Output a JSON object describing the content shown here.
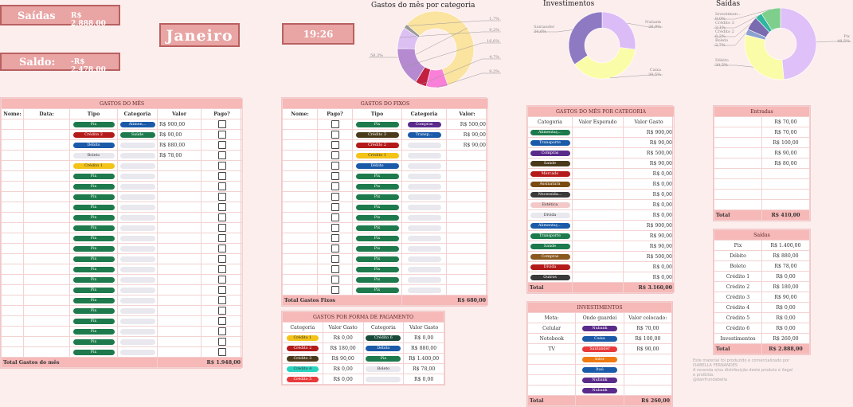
{
  "cards": {
    "saidas_label": "Saídas",
    "saidas_value": "R$ 2.888,00",
    "saldo_label": "Saldo:",
    "saldo_value": "-R$ 2.478,00",
    "month": "Janeiro",
    "time": "19:26"
  },
  "charts": {
    "categoria_title": "Gastos do mês por categoria",
    "investimentos_title": "Investimentos",
    "saidas_title": "Saídas"
  },
  "chart_data": [
    {
      "type": "pie",
      "title": "Gastos do mês por categoria",
      "labels": [
        "",
        "",
        "",
        "",
        "",
        ""
      ],
      "values": [
        58.3,
        9.2,
        4.7,
        16.6,
        9.2,
        1.7
      ],
      "value_labels": [
        "58,3%",
        "9,2%",
        "4,7%",
        "16,6%",
        "9,2%",
        "1,7%"
      ],
      "colors": [
        "#fbe3a0",
        "#f97fd8",
        "#c22040",
        "#b58ad0",
        "#dcc0f3",
        "#999999"
      ]
    },
    {
      "type": "pie",
      "title": "Investimentos",
      "labels": [
        "Nubank",
        "Caixa",
        "Santander"
      ],
      "values": [
        26.9,
        38.5,
        34.6
      ],
      "value_labels": [
        "26,9%",
        "38,5%",
        "34,6%"
      ],
      "colors": [
        "#dcbcf7",
        "#fbfca8",
        "#8e79c3"
      ]
    },
    {
      "type": "pie",
      "title": "Saídas",
      "labels": [
        "Pix",
        "Débito",
        "Boleto",
        "Crédito 2",
        "Crédito 3",
        "Investimen..."
      ],
      "values": [
        48.5,
        30.5,
        2.7,
        6.2,
        3.1,
        9.0
      ],
      "value_labels": [
        "48,5%",
        "30,5%",
        "2,7%",
        "6,2%",
        "3,1%",
        "9,0%"
      ],
      "colors": [
        "#e0c0f8",
        "#fbfca8",
        "#8aa0d0",
        "#7a6ab0",
        "#2fb5a0",
        "#7fcf8c"
      ]
    }
  ],
  "gastos_mes": {
    "title": "GASTOS DO MÊS",
    "headers": [
      "Nome:",
      "Data:",
      "Tipo",
      "Categoria",
      "Valor",
      "Pago?"
    ],
    "rows": [
      {
        "tipo": "Pix",
        "tcolor": "#1e7a4c",
        "cat": "Alimen...",
        "ccolor": "#1a5aa8",
        "valor": "R$ 900,00"
      },
      {
        "tipo": "Crédito 2",
        "tcolor": "#b51a1a",
        "cat": "Saúde",
        "ccolor": "#1e7a4c",
        "valor": "R$ 90,00"
      },
      {
        "tipo": "Débito",
        "tcolor": "#1a5aa8",
        "cat": "",
        "ccolor": "",
        "valor": "R$ 880,00"
      },
      {
        "tipo": "Boleto",
        "tcolor": "#e8e8ee",
        "cat": "",
        "ccolor": "",
        "valor": "R$ 78,00"
      },
      {
        "tipo": "Crédito 1",
        "tcolor": "#f3c318",
        "cat": "",
        "ccolor": "",
        "valor": ""
      },
      {
        "tipo": "Pix",
        "tcolor": "#1e7a4c",
        "cat": "",
        "ccolor": "",
        "valor": ""
      },
      {
        "tipo": "Pix",
        "tcolor": "#1e7a4c",
        "cat": "",
        "ccolor": "",
        "valor": ""
      },
      {
        "tipo": "Pix",
        "tcolor": "#1e7a4c",
        "cat": "",
        "ccolor": "",
        "valor": ""
      },
      {
        "tipo": "Pix",
        "tcolor": "#1e7a4c",
        "cat": "",
        "ccolor": "",
        "valor": ""
      },
      {
        "tipo": "Pix",
        "tcolor": "#1e7a4c",
        "cat": "",
        "ccolor": "",
        "valor": ""
      },
      {
        "tipo": "Pix",
        "tcolor": "#1e7a4c",
        "cat": "",
        "ccolor": "",
        "valor": ""
      },
      {
        "tipo": "Pix",
        "tcolor": "#1e7a4c",
        "cat": "",
        "ccolor": "",
        "valor": ""
      },
      {
        "tipo": "Pix",
        "tcolor": "#1e7a4c",
        "cat": "",
        "ccolor": "",
        "valor": ""
      },
      {
        "tipo": "Pix",
        "tcolor": "#1e7a4c",
        "cat": "",
        "ccolor": "",
        "valor": ""
      },
      {
        "tipo": "Pix",
        "tcolor": "#1e7a4c",
        "cat": "",
        "ccolor": "",
        "valor": ""
      },
      {
        "tipo": "Pix",
        "tcolor": "#1e7a4c",
        "cat": "",
        "ccolor": "",
        "valor": ""
      },
      {
        "tipo": "Pix",
        "tcolor": "#1e7a4c",
        "cat": "",
        "ccolor": "",
        "valor": ""
      },
      {
        "tipo": "Pix",
        "tcolor": "#1e7a4c",
        "cat": "",
        "ccolor": "",
        "valor": ""
      },
      {
        "tipo": "Pix",
        "tcolor": "#1e7a4c",
        "cat": "",
        "ccolor": "",
        "valor": ""
      },
      {
        "tipo": "Pix",
        "tcolor": "#1e7a4c",
        "cat": "",
        "ccolor": "",
        "valor": ""
      },
      {
        "tipo": "Pix",
        "tcolor": "#1e7a4c",
        "cat": "",
        "ccolor": "",
        "valor": ""
      },
      {
        "tipo": "Pix",
        "tcolor": "#1e7a4c",
        "cat": "",
        "ccolor": "",
        "valor": ""
      },
      {
        "tipo": "Pix",
        "tcolor": "#1e7a4c",
        "cat": "",
        "ccolor": "",
        "valor": ""
      }
    ],
    "total_label": "Total Gastos do mês",
    "total_value": "R$ 1.948,00"
  },
  "gastos_fixos": {
    "title": "GASTOS DO FIXOS",
    "headers": [
      "Nome:",
      "Pago?",
      "Tipo",
      "Categoria",
      "Valor:"
    ],
    "rows": [
      {
        "tipo": "Pix",
        "tcolor": "#1e7a4c",
        "cat": "Compras",
        "ccolor": "#5a2a8a",
        "valor": "R$ 500,00"
      },
      {
        "tipo": "Crédito 3",
        "tcolor": "#4a3a1a",
        "cat": "Transp...",
        "ccolor": "#1a5aa8",
        "valor": "R$ 90,00"
      },
      {
        "tipo": "Crédito 2",
        "tcolor": "#b51a1a",
        "cat": "",
        "ccolor": "",
        "valor": "R$ 90,00"
      },
      {
        "tipo": "Crédito 1",
        "tcolor": "#f3c318",
        "cat": "",
        "ccolor": "",
        "valor": ""
      },
      {
        "tipo": "Débito",
        "tcolor": "#1a5aa8",
        "cat": "",
        "ccolor": "",
        "valor": ""
      },
      {
        "tipo": "Pix",
        "tcolor": "#1e7a4c",
        "cat": "",
        "ccolor": "",
        "valor": ""
      },
      {
        "tipo": "Pix",
        "tcolor": "#1e7a4c",
        "cat": "",
        "ccolor": "",
        "valor": ""
      },
      {
        "tipo": "Pix",
        "tcolor": "#1e7a4c",
        "cat": "",
        "ccolor": "",
        "valor": ""
      },
      {
        "tipo": "Pix",
        "tcolor": "#1e7a4c",
        "cat": "",
        "ccolor": "",
        "valor": ""
      },
      {
        "tipo": "Pix",
        "tcolor": "#1e7a4c",
        "cat": "",
        "ccolor": "",
        "valor": ""
      },
      {
        "tipo": "Pix",
        "tcolor": "#1e7a4c",
        "cat": "",
        "ccolor": "",
        "valor": ""
      },
      {
        "tipo": "Pix",
        "tcolor": "#1e7a4c",
        "cat": "",
        "ccolor": "",
        "valor": ""
      },
      {
        "tipo": "Pix",
        "tcolor": "#1e7a4c",
        "cat": "",
        "ccolor": "",
        "valor": ""
      },
      {
        "tipo": "Pix",
        "tcolor": "#1e7a4c",
        "cat": "",
        "ccolor": "",
        "valor": ""
      },
      {
        "tipo": "Pix",
        "tcolor": "#1e7a4c",
        "cat": "",
        "ccolor": "",
        "valor": ""
      },
      {
        "tipo": "Pix",
        "tcolor": "#1e7a4c",
        "cat": "",
        "ccolor": "",
        "valor": ""
      },
      {
        "tipo": "Pix",
        "tcolor": "#1e7a4c",
        "cat": "",
        "ccolor": "",
        "valor": ""
      }
    ],
    "total_label": "Total Gastos Fixos",
    "total_value": "R$ 680,00"
  },
  "forma_pagamento": {
    "title": "GASTOS POR FORMA DE PAGAMENTO",
    "headers": [
      "Categoria",
      "Valor Gasto",
      "Categoria",
      "Valor Gasto"
    ],
    "rows": [
      {
        "c1": "Crédito 1",
        "c1color": "#f3c318",
        "v1": "R$ 0,00",
        "c2": "Crédito 6",
        "c2color": "#1a4a3a",
        "v2": "R$ 0,00"
      },
      {
        "c1": "Crédito 2",
        "c1color": "#b51a1a",
        "v1": "R$ 180,00",
        "c2": "Débito",
        "c2color": "#1a5aa8",
        "v2": "R$ 880,00"
      },
      {
        "c1": "Crédito 3",
        "c1color": "#4a3a1a",
        "v1": "R$ 90,00",
        "c2": "Pix",
        "c2color": "#1e7a4c",
        "v2": "R$ 1.400,00"
      },
      {
        "c1": "Crédito 4",
        "c1color": "#2ad3c0",
        "v1": "R$ 0,00",
        "c2": "Boleto",
        "c2color": "#e8e8ee",
        "v2": "R$ 78,00"
      },
      {
        "c1": "Crédito 5",
        "c1color": "#e83a3a",
        "v1": "R$ 0,00",
        "c2": "",
        "c2color": "",
        "v2": "R$ 0,00"
      }
    ]
  },
  "por_categoria": {
    "title": "GASTOS DO MÊS POR CATEGORIA",
    "headers": [
      "Categoria",
      "Valor Esperado",
      "Valor Gasto"
    ],
    "rows": [
      {
        "cat": "Alimentaç...",
        "color": "#1e7a4c",
        "esp": "",
        "gasto": "R$ 900,00"
      },
      {
        "cat": "Transporte",
        "color": "#1a5aa8",
        "esp": "",
        "gasto": "R$ 90,00"
      },
      {
        "cat": "Compras",
        "color": "#5a2a8a",
        "esp": "",
        "gasto": "R$ 500,00"
      },
      {
        "cat": "Saúde",
        "color": "#4a3a1a",
        "esp": "",
        "gasto": "R$ 90,00"
      },
      {
        "cat": "Mercado",
        "color": "#b51a1a",
        "esp": "",
        "gasto": "R$ 0,00"
      },
      {
        "cat": "Assinatura",
        "color": "#7a4a10",
        "esp": "",
        "gasto": "R$ 0,00"
      },
      {
        "cat": "Necessida...",
        "color": "#3a3a3a",
        "esp": "",
        "gasto": "R$ 0,00"
      },
      {
        "cat": "Estética",
        "color": "#f3c8c8",
        "esp": "",
        "gasto": "R$ 0,00"
      },
      {
        "cat": "Dívida",
        "color": "#e8e8ee",
        "esp": "",
        "gasto": "R$ 0,00"
      },
      {
        "cat": "Alimentaç...",
        "color": "#1a5aa8",
        "esp": "",
        "gasto": "R$ 900,00"
      },
      {
        "cat": "Transporte",
        "color": "#1e7a4c",
        "esp": "",
        "gasto": "R$ 90,00"
      },
      {
        "cat": "Saúde",
        "color": "#1e7a4c",
        "esp": "",
        "gasto": "R$ 90,00"
      },
      {
        "cat": "Compras",
        "color": "#8a5a20",
        "esp": "",
        "gasto": "R$ 500,00"
      },
      {
        "cat": "Dívida",
        "color": "#b51a1a",
        "esp": "",
        "gasto": "R$ 0,00"
      },
      {
        "cat": "Outros",
        "color": "#3a3a3a",
        "esp": "",
        "gasto": "R$ 0,00"
      }
    ],
    "total_label": "Total",
    "total_value": "R$ 3.160,00"
  },
  "investimentos": {
    "title": "INVESTIMENTOS",
    "headers": [
      "Meta:",
      "Onde guardei",
      "Valor colocado:"
    ],
    "rows": [
      {
        "meta": "Celular",
        "onde": "Nubank",
        "color": "#5a2a8a",
        "valor": "R$ 70,00"
      },
      {
        "meta": "Notebook",
        "onde": "Caixa",
        "color": "#1a5aa8",
        "valor": "R$ 100,00"
      },
      {
        "meta": "TV",
        "onde": "Santander",
        "color": "#e83a3a",
        "valor": "R$ 90,00"
      },
      {
        "meta": "",
        "onde": "Inter",
        "color": "#f07a10",
        "valor": ""
      },
      {
        "meta": "",
        "onde": "Itaú",
        "color": "#1a5aa8",
        "valor": ""
      },
      {
        "meta": "",
        "onde": "Nubank",
        "color": "#5a2a8a",
        "valor": ""
      },
      {
        "meta": "",
        "onde": "Nubank",
        "color": "#5a2a8a",
        "valor": ""
      }
    ],
    "total_label": "Total",
    "total_value": "R$ 260,00"
  },
  "entradas": {
    "title": "Entradas",
    "rows": [
      "R$ 70,00",
      "R$ 70,00",
      "R$ 100,00",
      "R$ 90,00",
      "R$ 80,00",
      "",
      "",
      "",
      ""
    ],
    "total_label": "Total",
    "total_value": "R$ 410,00"
  },
  "saidas_tbl": {
    "title": "Saídas",
    "rows": [
      {
        "k": "Pix",
        "v": "R$ 1.400,00"
      },
      {
        "k": "Débito",
        "v": "R$ 880,00"
      },
      {
        "k": "Boleto",
        "v": "R$ 78,00"
      },
      {
        "k": "Crédito 1",
        "v": "R$ 0,00"
      },
      {
        "k": "Crédito 2",
        "v": "R$ 180,00"
      },
      {
        "k": "Crédito 3",
        "v": "R$ 90,00"
      },
      {
        "k": "Crédito 4",
        "v": "R$ 0,00"
      },
      {
        "k": "Crédito 5",
        "v": "R$ 0,00"
      },
      {
        "k": "Crédito 6",
        "v": "R$ 0,00"
      },
      {
        "k": "Investimentos",
        "v": "R$ 260,00"
      }
    ],
    "total_label": "Total",
    "total_value": "R$ 2.888,00"
  },
  "footer": {
    "line1": "Este material foi produzido e comercializado por",
    "line2": "ISABELLA FERNANDES",
    "line3": "A revenda e/ou distribuição deste produto é ilegal",
    "line4": "e proibida.",
    "line5": "@danfrundabella"
  }
}
